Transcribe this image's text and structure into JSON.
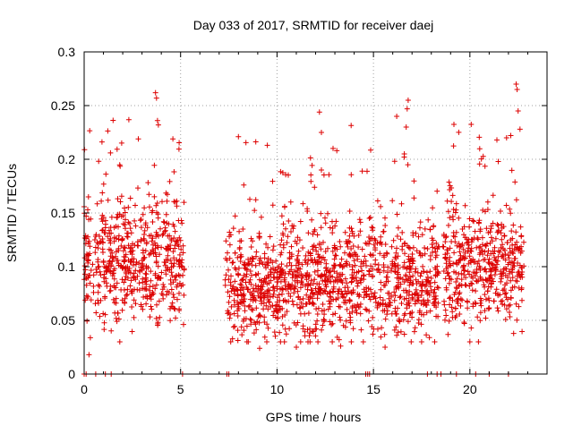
{
  "chart_data": {
    "type": "scatter",
    "title": "Day 033 of 2017, SRMTID for receiver daej",
    "xlabel": "GPS time / hours",
    "ylabel": "SRMTID / TECUs",
    "xlim": [
      0,
      24
    ],
    "ylim": [
      0,
      0.3
    ],
    "x_ticks": [
      "0",
      "5",
      "10",
      "15",
      "20"
    ],
    "y_ticks": [
      "0",
      "0.05",
      "0.1",
      "0.15",
      "0.2",
      "0.25",
      "0.3"
    ],
    "grid": true,
    "marker": "+",
    "colors": {
      "points": "#dd0000",
      "grid": "#a0a0a0",
      "axes": "#000000"
    },
    "segments": [
      {
        "start": 0.0,
        "end": 5.2,
        "center": 0.105,
        "spread": 0.028
      },
      {
        "start": 7.3,
        "end": 18.4,
        "center": 0.085,
        "spread": 0.026
      },
      {
        "start": 18.6,
        "end": 22.8,
        "center": 0.1,
        "spread": 0.028
      }
    ],
    "notable_points": [
      {
        "x": 0.25,
        "y": 0.018
      },
      {
        "x": 3.7,
        "y": 0.262
      },
      {
        "x": 3.75,
        "y": 0.257
      },
      {
        "x": 3.8,
        "y": 0.236
      },
      {
        "x": 3.85,
        "y": 0.232
      },
      {
        "x": 4.6,
        "y": 0.219
      },
      {
        "x": 8.0,
        "y": 0.221
      },
      {
        "x": 9.5,
        "y": 0.213
      },
      {
        "x": 12.2,
        "y": 0.244
      },
      {
        "x": 12.3,
        "y": 0.225
      },
      {
        "x": 12.3,
        "y": 0.19
      },
      {
        "x": 13.1,
        "y": 0.208
      },
      {
        "x": 16.8,
        "y": 0.255
      },
      {
        "x": 16.75,
        "y": 0.247
      },
      {
        "x": 16.7,
        "y": 0.23
      },
      {
        "x": 16.6,
        "y": 0.205
      },
      {
        "x": 20.0,
        "y": 0.03
      },
      {
        "x": 21.4,
        "y": 0.218
      },
      {
        "x": 21.9,
        "y": 0.22
      },
      {
        "x": 22.4,
        "y": 0.27
      },
      {
        "x": 22.45,
        "y": 0.265
      },
      {
        "x": 22.5,
        "y": 0.245
      },
      {
        "x": 22.6,
        "y": 0.228
      },
      {
        "x": 11.0,
        "y": 0.025
      },
      {
        "x": 13.3,
        "y": 0.026
      },
      {
        "x": 9.1,
        "y": 0.024
      },
      {
        "x": 15.6,
        "y": 0.025
      }
    ],
    "zero_points_x": [
      0.0,
      0.1,
      0.6,
      1.1,
      1.4,
      5.1,
      7.4,
      7.5,
      14.6,
      14.7,
      14.8,
      17.8,
      18.3,
      18.5,
      19.3,
      20.3,
      21.0,
      22.0
    ]
  }
}
